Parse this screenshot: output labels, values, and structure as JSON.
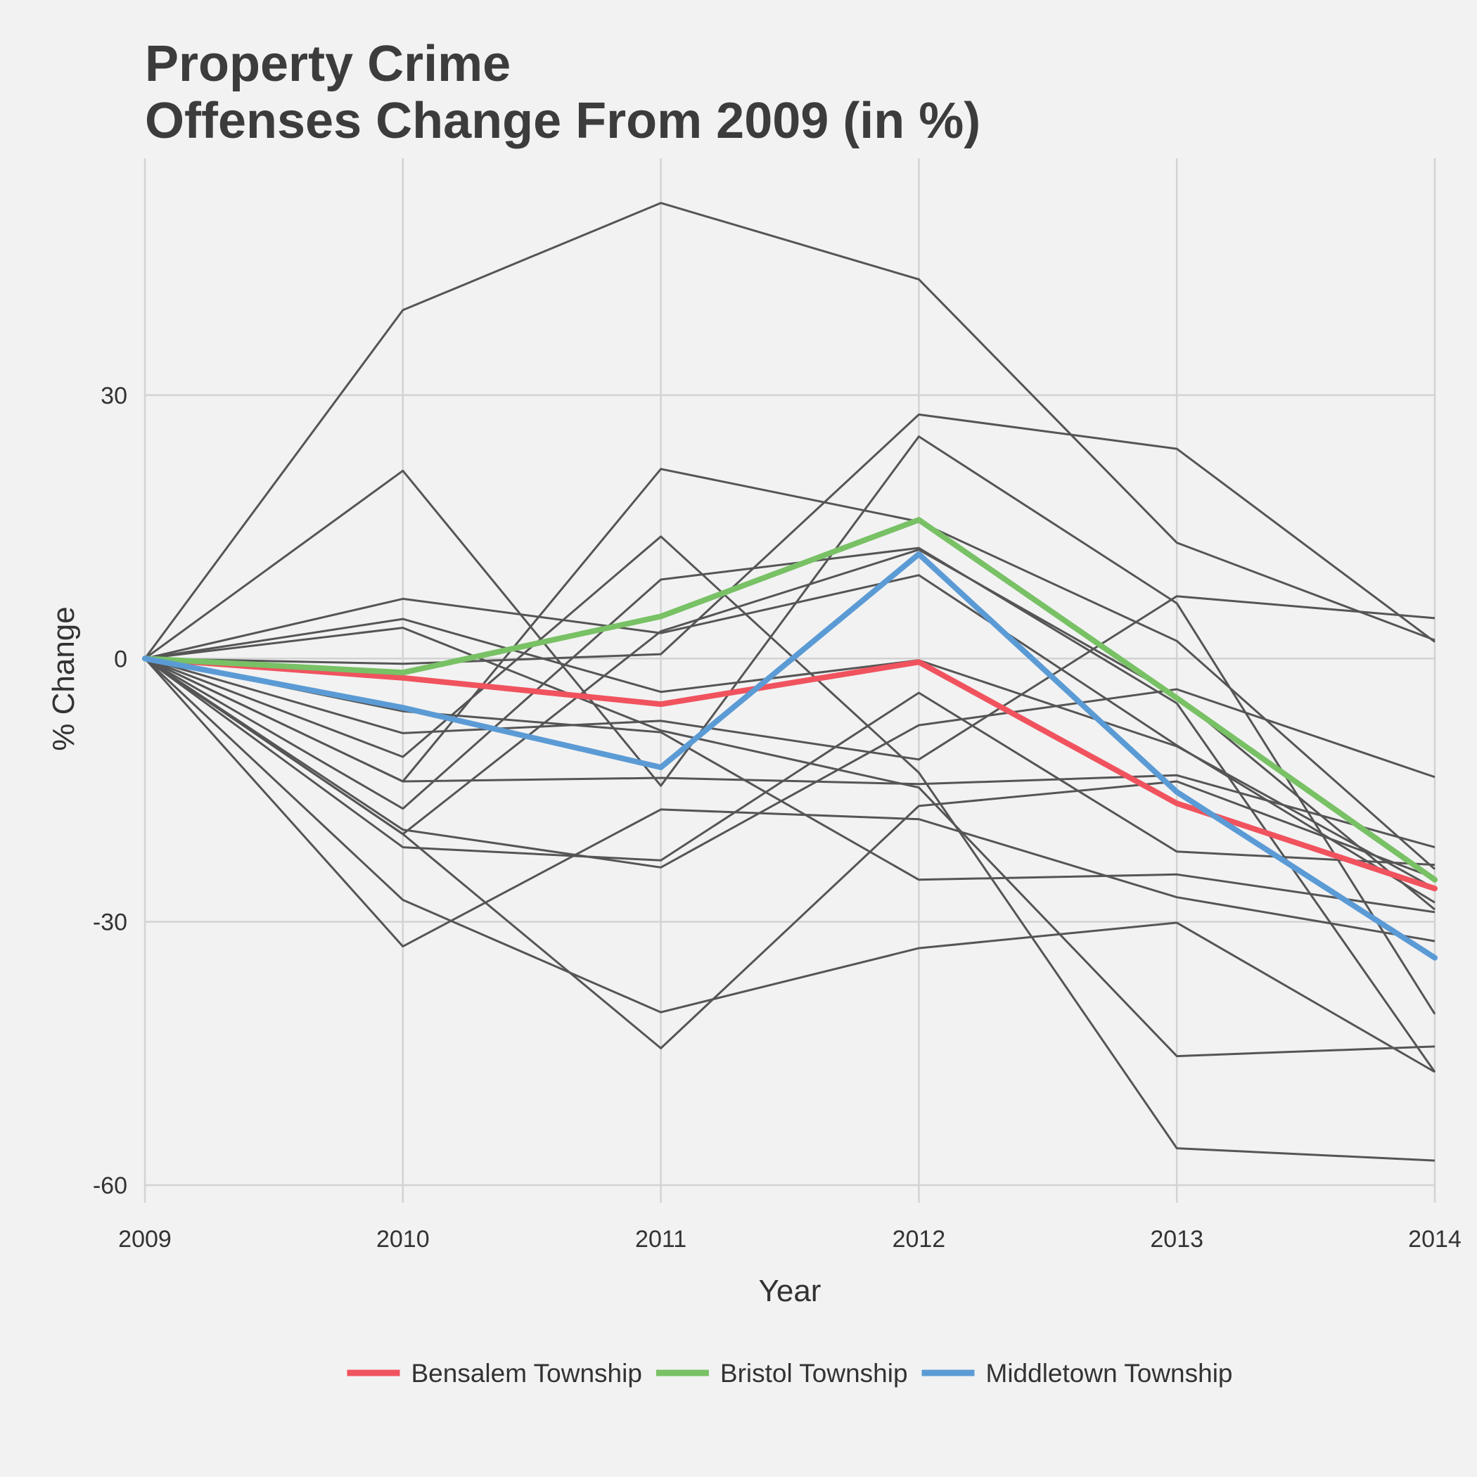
{
  "chart_data": {
    "type": "line",
    "title": [
      "Property Crime",
      "Offenses Change From 2009 (in %)"
    ],
    "xlabel": "Year",
    "ylabel": "% Change",
    "x": [
      2009,
      2010,
      2011,
      2012,
      2013,
      2014
    ],
    "x_tick_labels": [
      "2009",
      "2010",
      "2011",
      "2012",
      "2013",
      "2014"
    ],
    "y_ticks": [
      30,
      0,
      -30,
      -60
    ],
    "y_tick_labels": [
      "30",
      "0",
      "-30",
      "-60"
    ],
    "xlim": [
      2009,
      2014
    ],
    "ylim": [
      -62,
      57
    ],
    "grid": true,
    "legend_position": "bottom",
    "highlight_series": [
      {
        "name": "Bensalem Township",
        "color": "#f0535e",
        "values": [
          0,
          -2.2,
          -5.2,
          -0.4,
          -16.5,
          -26.2
        ]
      },
      {
        "name": "Bristol Township",
        "color": "#78c165",
        "values": [
          0,
          -1.6,
          4.8,
          15.8,
          -4.5,
          -25.2
        ]
      },
      {
        "name": "Middletown Township",
        "color": "#5b9bd5",
        "values": [
          0,
          -5.6,
          -12.4,
          11.9,
          -15.2,
          -34.1
        ]
      }
    ],
    "background_series_color": "#555555",
    "background_series": [
      [
        0,
        39.7,
        51.9,
        43.2,
        13.2,
        2.1
      ],
      [
        0,
        -0.6,
        0.5,
        27.8,
        23.9,
        1.9
      ],
      [
        0,
        21.4,
        -14.5,
        25.3,
        6.3,
        -40.5
      ],
      [
        0,
        -14.0,
        21.6,
        15.6,
        2.0,
        -24.0
      ],
      [
        0,
        -11.2,
        13.9,
        -13.0,
        -55.8,
        -57.2
      ],
      [
        0,
        -20.0,
        3.1,
        12.4,
        -4.3,
        -28.6
      ],
      [
        0,
        -17.1,
        9.0,
        12.6,
        -5.1,
        -47.1
      ],
      [
        0,
        6.8,
        2.9,
        9.5,
        -9.9,
        -27.8
      ],
      [
        0,
        4.5,
        -3.8,
        -0.2,
        -10.0,
        -26.2
      ],
      [
        0,
        3.5,
        -8.2,
        -14.7,
        -45.3,
        -44.2
      ],
      [
        0,
        -8.5,
        -7.1,
        -11.5,
        7.1,
        4.6
      ],
      [
        0,
        -21.5,
        -23.0,
        -3.9,
        -22.0,
        -23.5
      ],
      [
        0,
        -14.0,
        -13.6,
        -14.3,
        -13.3,
        -21.5
      ],
      [
        0,
        -27.5,
        -40.3,
        -33.0,
        -30.1,
        -47.1
      ],
      [
        0,
        -19.5,
        -23.8,
        -7.6,
        -3.5,
        -13.5
      ],
      [
        0,
        -32.8,
        -17.2,
        -18.3,
        -27.2,
        -32.2
      ],
      [
        0,
        -6.0,
        -8.4,
        -25.2,
        -24.6,
        -28.9
      ],
      [
        0,
        -20.0,
        -44.4,
        -16.8,
        -14.0,
        -25.0
      ]
    ]
  }
}
